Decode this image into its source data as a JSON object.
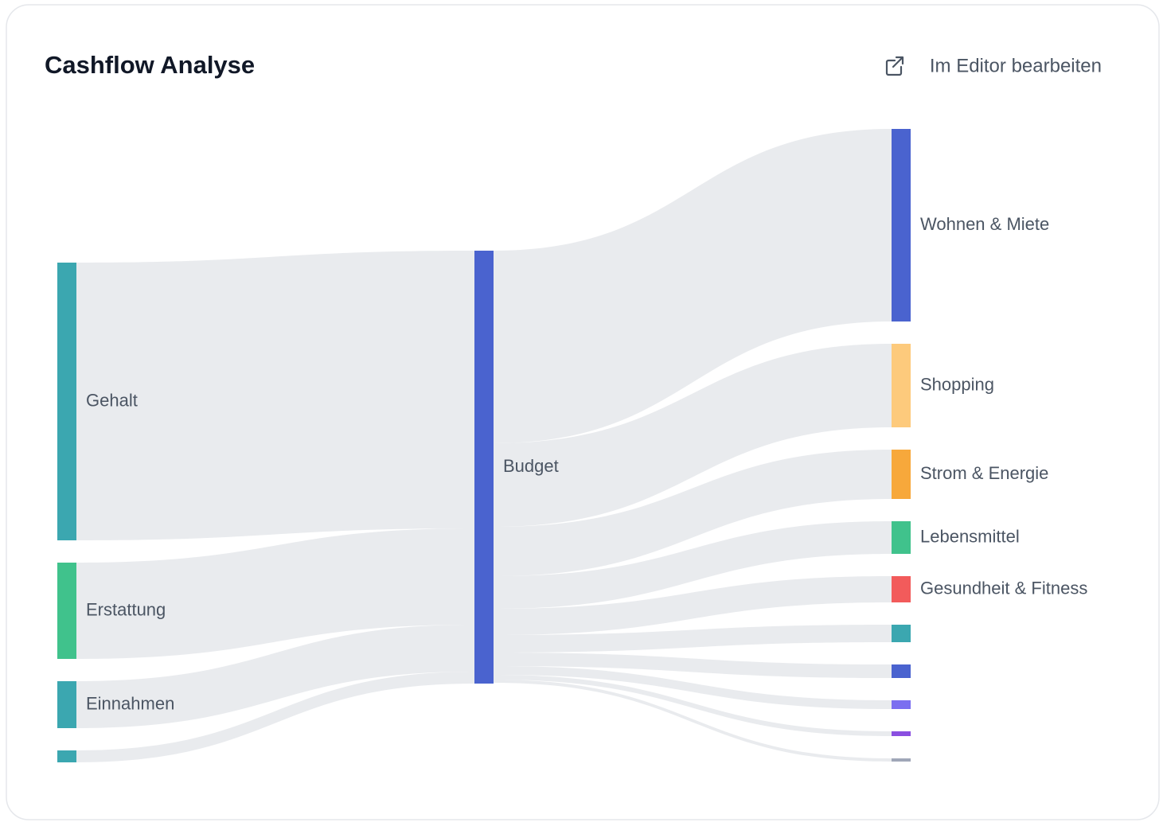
{
  "chart_data": {
    "type": "sankey",
    "title": "Cashflow Analyse",
    "nodes": [
      {
        "name": "Gehalt",
        "color": "#3ba7b0"
      },
      {
        "name": "Erstattung",
        "color": "#40c28c"
      },
      {
        "name": "Einnahmen",
        "color": "#3ba7b0"
      },
      {
        "name": null,
        "color": "#3ba7b0"
      },
      {
        "name": "Budget",
        "color": "#4a63cf"
      },
      {
        "name": "Wohnen & Miete",
        "color": "#4a63cf"
      },
      {
        "name": "Shopping",
        "color": "#fdca7c"
      },
      {
        "name": "Strom & Energie",
        "color": "#f7a83b"
      },
      {
        "name": "Lebensmittel",
        "color": "#40c28c"
      },
      {
        "name": "Gesundheit & Fitness",
        "color": "#f25b5b"
      },
      {
        "name": null,
        "color": "#3ba7b0"
      },
      {
        "name": null,
        "color": "#4a63cf"
      },
      {
        "name": null,
        "color": "#7b6ef0"
      },
      {
        "name": null,
        "color": "#8a4fe0"
      },
      {
        "name": null,
        "color": "#a0a7b8"
      }
    ],
    "links": [
      {
        "source": 0,
        "target": 4,
        "value": 349
      },
      {
        "source": 1,
        "target": 4,
        "value": 121
      },
      {
        "source": 2,
        "target": 4,
        "value": 59
      },
      {
        "source": 3,
        "target": 4,
        "value": 15
      },
      {
        "source": 4,
        "target": 5,
        "value": 242
      },
      {
        "source": 4,
        "target": 6,
        "value": 105
      },
      {
        "source": 4,
        "target": 7,
        "value": 62
      },
      {
        "source": 4,
        "target": 8,
        "value": 41
      },
      {
        "source": 4,
        "target": 9,
        "value": 33
      },
      {
        "source": 4,
        "target": 10,
        "value": 22
      },
      {
        "source": 4,
        "target": 11,
        "value": 17
      },
      {
        "source": 4,
        "target": 12,
        "value": 11
      },
      {
        "source": 4,
        "target": 13,
        "value": 6
      },
      {
        "source": 4,
        "target": 14,
        "value": 4
      }
    ],
    "link_color": "#e5e7eb"
  },
  "edit_link": "Im Editor bearbeiten"
}
